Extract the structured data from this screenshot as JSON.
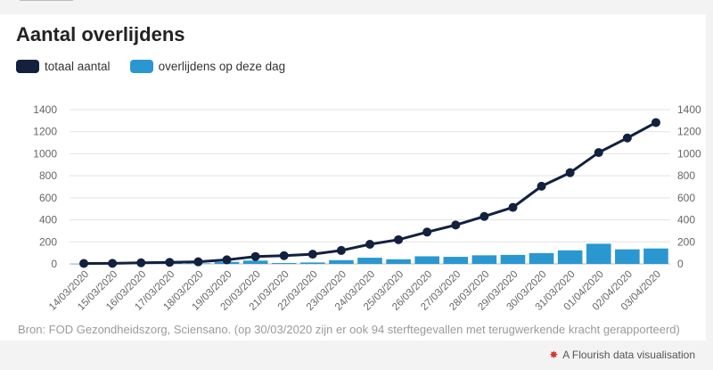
{
  "title": "Aantal overlijdens",
  "source": "Bron: FOD Gezondheidszorg, Sciensano. (op 30/03/2020 zijn er ook 94 sterftegevallen met terugwerkende kracht gerapporteerd)",
  "credit": "A Flourish data visualisation",
  "icons": {
    "credit": "flourish-logo-icon"
  },
  "colors": {
    "line": "#13213f",
    "bar": "#2a97d0",
    "grid": "#e3e3e3",
    "tick": "#666666"
  },
  "chart_data": {
    "type": "bar+line",
    "categories": [
      "14/03/2020",
      "15/03/2020",
      "16/03/2020",
      "17/03/2020",
      "18/03/2020",
      "19/03/2020",
      "20/03/2020",
      "21/03/2020",
      "22/03/2020",
      "23/03/2020",
      "24/03/2020",
      "25/03/2020",
      "26/03/2020",
      "27/03/2020",
      "28/03/2020",
      "29/03/2020",
      "30/03/2020",
      "31/03/2020",
      "01/04/2020",
      "02/04/2020",
      "03/04/2020"
    ],
    "series": [
      {
        "name": "totaal aantal",
        "type": "line",
        "values": [
          4,
          5,
          10,
          14,
          19,
          37,
          67,
          75,
          88,
          122,
          178,
          220,
          289,
          353,
          431,
          513,
          705,
          828,
          1011,
          1143,
          1283
        ]
      },
      {
        "name": "overlijdens op deze dag",
        "type": "bar",
        "values": [
          1,
          1,
          5,
          4,
          5,
          18,
          30,
          8,
          13,
          34,
          56,
          42,
          69,
          64,
          78,
          82,
          98,
          123,
          183,
          132,
          140
        ]
      }
    ],
    "ylim": [
      0,
      1400
    ],
    "yticks": [
      0,
      200,
      400,
      600,
      800,
      1000,
      1200,
      1400
    ],
    "grid": true,
    "legend": "top-left",
    "dual_axis_labels": true
  }
}
